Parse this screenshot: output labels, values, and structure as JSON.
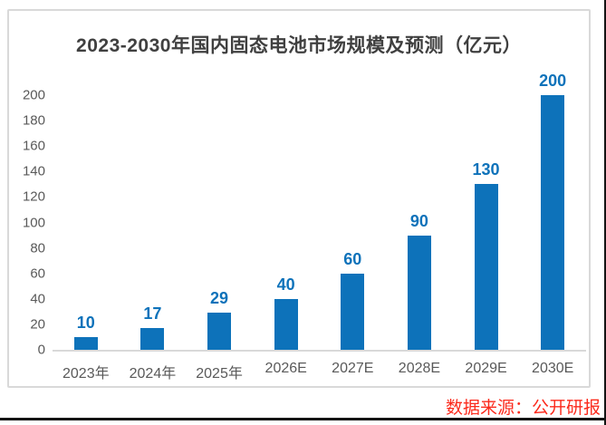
{
  "page": {
    "source_note": "数据来源：公开研报",
    "source_note_color": "#fb2a1c"
  },
  "chart_data": {
    "type": "bar",
    "title": "2023-2030年国内固态电池市场规模及预测（亿元）",
    "categories": [
      "2023年",
      "2024年",
      "2025年",
      "2026E",
      "2027E",
      "2028E",
      "2029E",
      "2030E"
    ],
    "values": [
      10,
      17,
      29,
      40,
      60,
      90,
      130,
      200
    ],
    "xlabel": "",
    "ylabel": "",
    "ylim": [
      0,
      200
    ],
    "ytick_step": 20,
    "grid": false,
    "legend": false,
    "data_labels": true,
    "bar_color": "#0d72ba",
    "data_label_color": "#0d72ba",
    "tick_label_color": "#595959",
    "title_color": "#404040"
  }
}
